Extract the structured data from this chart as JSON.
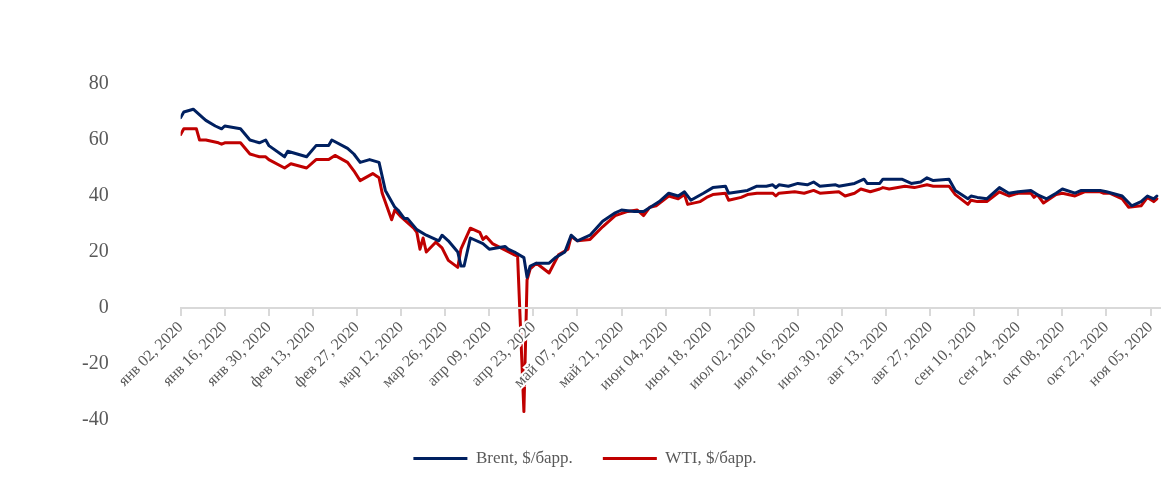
{
  "chart_data": {
    "type": "line",
    "legend": "bottom",
    "xlim": [
      "2020-01-02",
      "2020-11-08"
    ],
    "xticks": [
      {
        "value": "2020-01-02",
        "label": "янв 02, 2020"
      },
      {
        "value": "2020-01-16",
        "label": "янв 16, 2020"
      },
      {
        "value": "2020-01-30",
        "label": "янв 30, 2020"
      },
      {
        "value": "2020-02-13",
        "label": "фев 13, 2020"
      },
      {
        "value": "2020-02-27",
        "label": "фев 27, 2020"
      },
      {
        "value": "2020-03-12",
        "label": "мар 12, 2020"
      },
      {
        "value": "2020-03-26",
        "label": "мар 26, 2020"
      },
      {
        "value": "2020-04-09",
        "label": "апр 09, 2020"
      },
      {
        "value": "2020-04-23",
        "label": "апр 23, 2020"
      },
      {
        "value": "2020-05-07",
        "label": "май 07, 2020"
      },
      {
        "value": "2020-05-21",
        "label": "май 21, 2020"
      },
      {
        "value": "2020-06-04",
        "label": "июн 04, 2020"
      },
      {
        "value": "2020-06-18",
        "label": "июн 18, 2020"
      },
      {
        "value": "2020-07-02",
        "label": "июл 02, 2020"
      },
      {
        "value": "2020-07-16",
        "label": "июл 16, 2020"
      },
      {
        "value": "2020-07-30",
        "label": "июл 30, 2020"
      },
      {
        "value": "2020-08-13",
        "label": "авг 13, 2020"
      },
      {
        "value": "2020-08-27",
        "label": "авг 27, 2020"
      },
      {
        "value": "2020-09-10",
        "label": "сен 10, 2020"
      },
      {
        "value": "2020-09-24",
        "label": "сен 24, 2020"
      },
      {
        "value": "2020-10-08",
        "label": "окт 08, 2020"
      },
      {
        "value": "2020-10-22",
        "label": "окт 22, 2020"
      },
      {
        "value": "2020-11-05",
        "label": "ноя 05, 2020"
      }
    ],
    "ylim": [
      -40,
      80
    ],
    "yticks": [
      -40,
      -20,
      0,
      20,
      40,
      60,
      80
    ],
    "series": [
      {
        "name": "Brent, $/барр.",
        "color": "#002060",
        "x": [
          "2020-01-02",
          "2020-01-03",
          "2020-01-06",
          "2020-01-09",
          "2020-01-10",
          "2020-01-13",
          "2020-01-15",
          "2020-01-16",
          "2020-01-21",
          "2020-01-24",
          "2020-01-27",
          "2020-01-29",
          "2020-01-30",
          "2020-02-04",
          "2020-02-05",
          "2020-02-11",
          "2020-02-14",
          "2020-02-18",
          "2020-02-19",
          "2020-02-24",
          "2020-02-26",
          "2020-02-28",
          "2020-03-02",
          "2020-03-05",
          "2020-03-07",
          "2020-03-10",
          "2020-03-11",
          "2020-03-13",
          "2020-03-14",
          "2020-03-17",
          "2020-03-20",
          "2020-03-24",
          "2020-03-25",
          "2020-03-27",
          "2020-03-30",
          "2020-03-31",
          "2020-04-01",
          "2020-04-03",
          "2020-04-07",
          "2020-04-09",
          "2020-04-14",
          "2020-04-15",
          "2020-04-17",
          "2020-04-20",
          "2020-04-21",
          "2020-04-22",
          "2020-04-24",
          "2020-04-28",
          "2020-04-30",
          "2020-05-03",
          "2020-05-05",
          "2020-05-07",
          "2020-05-11",
          "2020-05-15",
          "2020-05-19",
          "2020-05-21",
          "2020-05-25",
          "2020-05-28",
          "2020-06-02",
          "2020-06-05",
          "2020-06-08",
          "2020-06-10",
          "2020-06-12",
          "2020-06-16",
          "2020-06-19",
          "2020-06-23",
          "2020-06-24",
          "2020-06-30",
          "2020-07-03",
          "2020-07-06",
          "2020-07-08",
          "2020-07-09",
          "2020-07-10",
          "2020-07-13",
          "2020-07-16",
          "2020-07-19",
          "2020-07-21",
          "2020-07-23",
          "2020-07-28",
          "2020-07-29",
          "2020-08-03",
          "2020-08-06",
          "2020-08-07",
          "2020-08-11",
          "2020-08-12",
          "2020-08-18",
          "2020-08-21",
          "2020-08-24",
          "2020-08-26",
          "2020-08-28",
          "2020-09-02",
          "2020-09-04",
          "2020-09-08",
          "2020-09-09",
          "2020-09-11",
          "2020-09-14",
          "2020-09-18",
          "2020-09-21",
          "2020-09-24",
          "2020-09-28",
          "2020-09-30",
          "2020-10-03",
          "2020-10-06",
          "2020-10-08",
          "2020-10-12",
          "2020-10-14",
          "2020-10-20",
          "2020-10-22",
          "2020-10-27",
          "2020-10-30",
          "2020-11-02",
          "2020-11-04",
          "2020-11-06",
          "2020-11-07"
        ],
        "values": [
          68,
          70,
          71,
          68,
          67,
          65,
          64,
          65,
          64,
          60,
          59,
          60,
          58,
          54,
          56,
          54,
          58,
          58,
          60,
          57,
          55,
          52,
          53,
          52,
          42,
          36,
          35,
          32,
          32,
          28,
          26,
          24,
          26,
          24,
          20,
          15,
          15,
          25,
          23,
          21,
          22,
          21,
          20,
          18,
          11,
          15,
          16,
          16,
          18,
          20,
          26,
          24,
          26,
          31,
          34,
          35,
          34.5,
          34.5,
          38,
          41,
          40,
          41.5,
          38.5,
          41,
          43,
          43.5,
          41,
          42,
          43.5,
          43.5,
          44,
          43,
          44,
          43.5,
          44.5,
          44,
          45,
          43.5,
          44,
          43.5,
          44.5,
          46,
          44.5,
          44.5,
          46,
          46,
          44.5,
          45,
          46.5,
          45.5,
          46,
          42,
          39,
          40,
          39.5,
          39,
          43,
          41,
          41.5,
          42,
          40.5,
          39,
          41,
          42.5,
          41,
          42,
          42,
          41.5,
          40,
          36.5,
          38,
          40,
          39,
          40
        ]
      },
      {
        "name": "WTI, $/барр.",
        "color": "#c00000",
        "x": [
          "2020-01-02",
          "2020-01-03",
          "2020-01-07",
          "2020-01-08",
          "2020-01-10",
          "2020-01-14",
          "2020-01-15",
          "2020-01-16",
          "2020-01-21",
          "2020-01-24",
          "2020-01-27",
          "2020-01-29",
          "2020-01-30",
          "2020-02-04",
          "2020-02-06",
          "2020-02-11",
          "2020-02-13",
          "2020-02-14",
          "2020-02-18",
          "2020-02-20",
          "2020-02-24",
          "2020-02-26",
          "2020-02-28",
          "2020-03-03",
          "2020-03-05",
          "2020-03-06",
          "2020-03-09",
          "2020-03-10",
          "2020-03-12",
          "2020-03-16",
          "2020-03-17",
          "2020-03-18",
          "2020-03-19",
          "2020-03-20",
          "2020-03-23",
          "2020-03-25",
          "2020-03-27",
          "2020-03-30",
          "2020-03-31",
          "2020-04-03",
          "2020-04-06",
          "2020-04-07",
          "2020-04-08",
          "2020-04-10",
          "2020-04-17",
          "2020-04-18",
          "2020-04-20",
          "2020-04-21",
          "2020-04-22",
          "2020-04-24",
          "2020-04-28",
          "2020-05-01",
          "2020-05-04",
          "2020-05-05",
          "2020-05-07",
          "2020-05-11",
          "2020-05-15",
          "2020-05-19",
          "2020-05-23",
          "2020-05-26",
          "2020-05-28",
          "2020-05-30",
          "2020-06-01",
          "2020-06-05",
          "2020-06-08",
          "2020-06-10",
          "2020-06-11",
          "2020-06-15",
          "2020-06-17",
          "2020-06-19",
          "2020-06-23",
          "2020-06-24",
          "2020-06-28",
          "2020-06-30",
          "2020-07-03",
          "2020-07-08",
          "2020-07-09",
          "2020-07-10",
          "2020-07-15",
          "2020-07-18",
          "2020-07-21",
          "2020-07-23",
          "2020-07-29",
          "2020-07-31",
          "2020-08-03",
          "2020-08-05",
          "2020-08-08",
          "2020-08-11",
          "2020-08-12",
          "2020-08-14",
          "2020-08-19",
          "2020-08-22",
          "2020-08-26",
          "2020-08-28",
          "2020-09-02",
          "2020-09-04",
          "2020-09-08",
          "2020-09-09",
          "2020-09-11",
          "2020-09-14",
          "2020-09-18",
          "2020-09-21",
          "2020-09-24",
          "2020-09-28",
          "2020-09-29",
          "2020-09-30",
          "2020-10-02",
          "2020-10-06",
          "2020-10-08",
          "2020-10-12",
          "2020-10-15",
          "2020-10-20",
          "2020-10-21",
          "2020-10-23",
          "2020-10-27",
          "2020-10-29",
          "2020-11-02",
          "2020-11-04",
          "2020-11-06",
          "2020-11-07"
        ],
        "values": [
          62,
          64,
          64,
          60,
          60,
          59,
          58.5,
          59,
          59,
          55,
          54,
          54,
          53,
          50,
          51.5,
          50,
          52,
          53,
          53,
          54.5,
          52,
          49,
          45.5,
          48,
          46.5,
          41,
          31.5,
          35,
          32.5,
          28.5,
          27,
          21,
          25,
          20,
          23.5,
          21.5,
          17,
          14.5,
          21,
          28.5,
          27,
          24.5,
          25.5,
          23,
          19,
          18.5,
          -37,
          10,
          14,
          16,
          12.5,
          19,
          21,
          25.5,
          24,
          24.5,
          29,
          33,
          34.5,
          35,
          33,
          36,
          36.5,
          40,
          39,
          40.5,
          37,
          38,
          39.5,
          40.5,
          41,
          38.5,
          39.5,
          40.5,
          41,
          41,
          40,
          41,
          41.5,
          41,
          42,
          41,
          41.5,
          40,
          41,
          42.5,
          41.5,
          42.5,
          43,
          42.5,
          43.5,
          43,
          44,
          43.5,
          43.5,
          40.5,
          37,
          38.5,
          38,
          38,
          41.5,
          40,
          41,
          41,
          39.5,
          40.5,
          37.5,
          40.5,
          41,
          40,
          41.5,
          41.5,
          41,
          41,
          39,
          36,
          36.5,
          39.5,
          38,
          39
        ]
      }
    ]
  }
}
